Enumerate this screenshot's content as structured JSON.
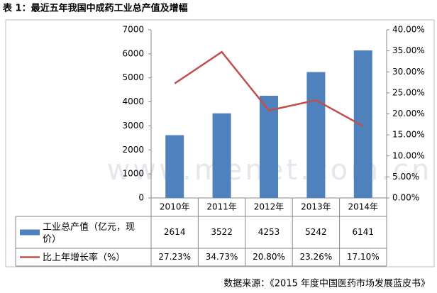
{
  "chart_data": {
    "type": "bar_line_table",
    "title": "表 1：最近五年我国中成药工业总产值及增幅",
    "source": "数据来源：《2015 年度中国医药市场发展蓝皮书》",
    "watermark": "www.menet.com.cn",
    "categories": [
      "2010年",
      "2011年",
      "2012年",
      "2013年",
      "2014年"
    ],
    "series": [
      {
        "name": "工业总产值（亿元，现价）",
        "color": "#4f81bd",
        "type": "bar",
        "values": [
          2614,
          3522,
          4253,
          5242,
          6141
        ]
      },
      {
        "name": "比上年增长率（%）",
        "color": "#c0504d",
        "type": "line",
        "axis": "y2",
        "values": [
          27.23,
          34.73,
          20.8,
          23.26,
          17.1
        ],
        "value_labels": [
          "27.23%",
          "34.73%",
          "20.80%",
          "23.26%",
          "17.10%"
        ]
      }
    ],
    "ylim": [
      0,
      7000
    ],
    "yticks": [
      0,
      1000,
      2000,
      3000,
      4000,
      5000,
      6000,
      7000
    ],
    "y2lim": [
      0,
      40
    ],
    "y2ticks": [
      {
        "value": 0,
        "label": "0.00%"
      },
      {
        "value": 5,
        "label": "5.00%"
      },
      {
        "value": 10,
        "label": "10.00%"
      },
      {
        "value": 15,
        "label": "15.00%"
      },
      {
        "value": 20,
        "label": "20.00%"
      },
      {
        "value": 25,
        "label": "25.00%"
      },
      {
        "value": 30,
        "label": "30.00%"
      },
      {
        "value": 35,
        "label": "35.00%"
      },
      {
        "value": 40,
        "label": "40.00%"
      }
    ],
    "grid": false
  }
}
